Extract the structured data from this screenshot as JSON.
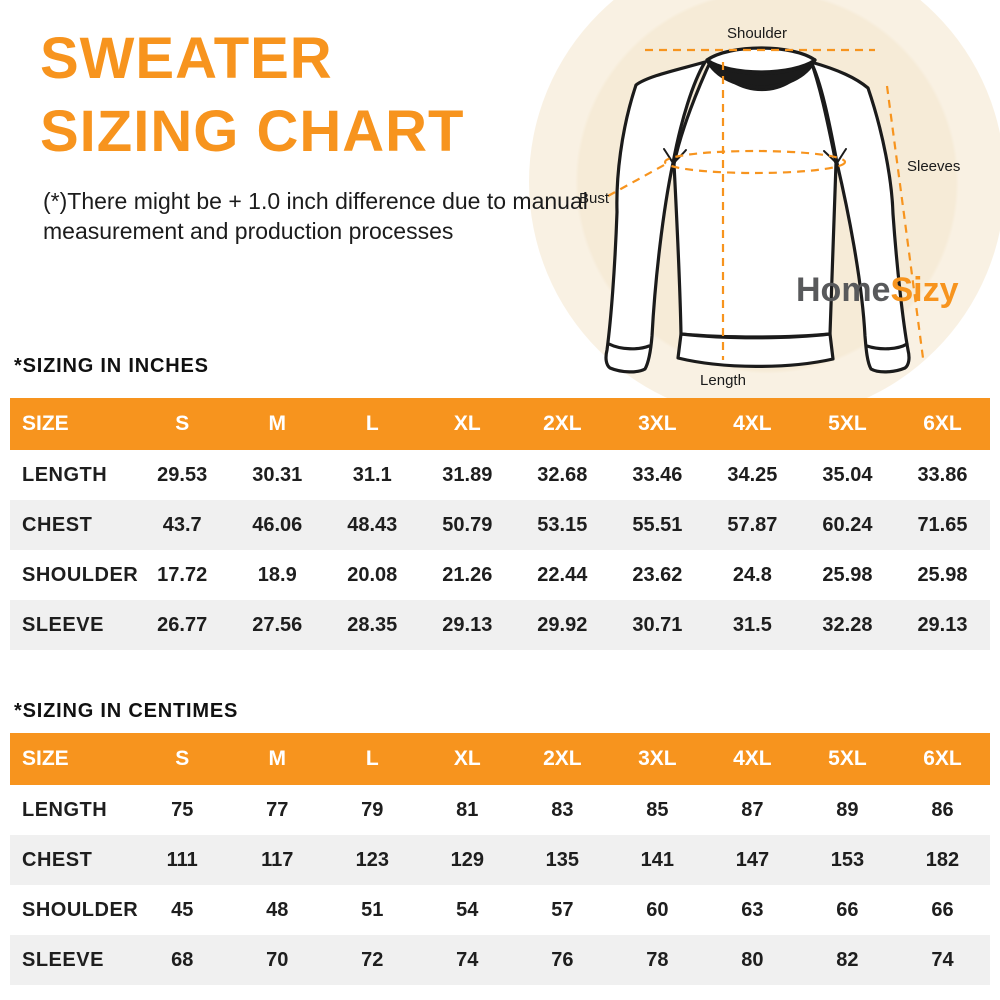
{
  "title": {
    "line1": "SWEATER",
    "line2": "SIZING CHART"
  },
  "disclaimer": "(*)There might be + 1.0 inch difference due to manual measurement and production processes",
  "diagram": {
    "labels": {
      "shoulder": "Shoulder",
      "bust": "Bust",
      "sleeves": "Sleeves",
      "length": "Length"
    },
    "brand": {
      "part1": "Home",
      "part2": "Sizy"
    }
  },
  "colors": {
    "accent_orange": "#F7941E",
    "brand_gray": "#58595B",
    "row_alt_gray": "#F0F0F0",
    "halo_cream": "#F6EBD7",
    "text_black": "#1C1C1C"
  },
  "tables": [
    {
      "heading": "*SIZING IN INCHES",
      "columns": [
        "SIZE",
        "S",
        "M",
        "L",
        "XL",
        "2XL",
        "3XL",
        "4XL",
        "5XL",
        "6XL"
      ],
      "rows": [
        {
          "label": "LENGTH",
          "values": [
            "29.53",
            "30.31",
            "31.1",
            "31.89",
            "32.68",
            "33.46",
            "34.25",
            "35.04",
            "33.86"
          ]
        },
        {
          "label": "CHEST",
          "values": [
            "43.7",
            "46.06",
            "48.43",
            "50.79",
            "53.15",
            "55.51",
            "57.87",
            "60.24",
            "71.65"
          ]
        },
        {
          "label": "SHOULDER",
          "values": [
            "17.72",
            "18.9",
            "20.08",
            "21.26",
            "22.44",
            "23.62",
            "24.8",
            "25.98",
            "25.98"
          ]
        },
        {
          "label": "SLEEVE",
          "values": [
            "26.77",
            "27.56",
            "28.35",
            "29.13",
            "29.92",
            "30.71",
            "31.5",
            "32.28",
            "29.13"
          ]
        }
      ]
    },
    {
      "heading": "*SIZING IN CENTIMES",
      "columns": [
        "SIZE",
        "S",
        "M",
        "L",
        "XL",
        "2XL",
        "3XL",
        "4XL",
        "5XL",
        "6XL"
      ],
      "rows": [
        {
          "label": "LENGTH",
          "values": [
            "75",
            "77",
            "79",
            "81",
            "83",
            "85",
            "87",
            "89",
            "86"
          ]
        },
        {
          "label": "CHEST",
          "values": [
            "111",
            "117",
            "123",
            "129",
            "135",
            "141",
            "147",
            "153",
            "182"
          ]
        },
        {
          "label": "SHOULDER",
          "values": [
            "45",
            "48",
            "51",
            "54",
            "57",
            "60",
            "63",
            "66",
            "66"
          ]
        },
        {
          "label": "SLEEVE",
          "values": [
            "68",
            "70",
            "72",
            "74",
            "76",
            "78",
            "80",
            "82",
            "74"
          ]
        }
      ]
    }
  ]
}
